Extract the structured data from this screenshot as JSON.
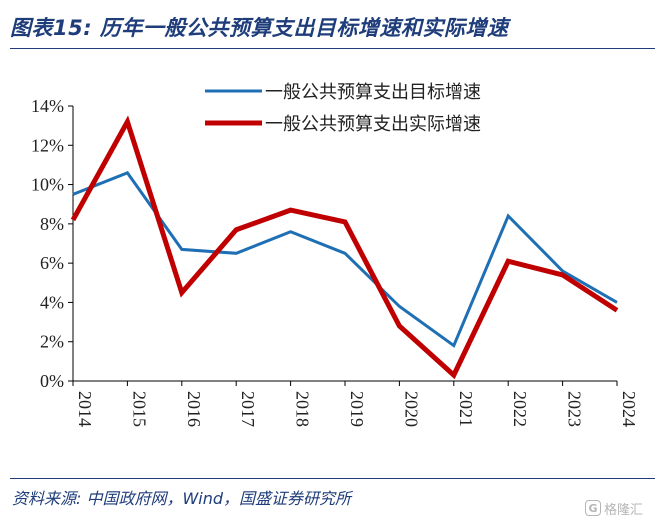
{
  "figure": {
    "title": "图表15:  历年一般公共预算支出目标增速和实际增速"
  },
  "source": "资料来源:  中国政府网，Wind，国盛证券研究所",
  "watermark": {
    "badge": "G",
    "text": "格隆汇"
  },
  "chart_data": {
    "type": "line",
    "title": "",
    "xlabel": "",
    "ylabel": "",
    "categories": [
      "2014",
      "2015",
      "2016",
      "2017",
      "2018",
      "2019",
      "2020",
      "2021",
      "2022",
      "2023",
      "2024"
    ],
    "ylim": [
      0,
      14
    ],
    "yticks": [
      0,
      2,
      4,
      6,
      8,
      10,
      12,
      14
    ],
    "ytick_labels": [
      "0%",
      "2%",
      "4%",
      "6%",
      "8%",
      "10%",
      "12%",
      "14%"
    ],
    "grid": false,
    "legend_position": "top",
    "series": [
      {
        "name": "一般公共预算支出目标增速",
        "color": "#1f6fb5",
        "values": [
          9.5,
          10.6,
          6.7,
          6.5,
          7.6,
          6.5,
          3.8,
          1.8,
          8.4,
          5.6,
          4.0
        ]
      },
      {
        "name": "一般公共预算支出实际增速",
        "color": "#c00000",
        "values": [
          8.2,
          13.2,
          4.5,
          7.7,
          8.7,
          8.1,
          2.8,
          0.3,
          6.1,
          5.4,
          3.6
        ]
      }
    ]
  }
}
